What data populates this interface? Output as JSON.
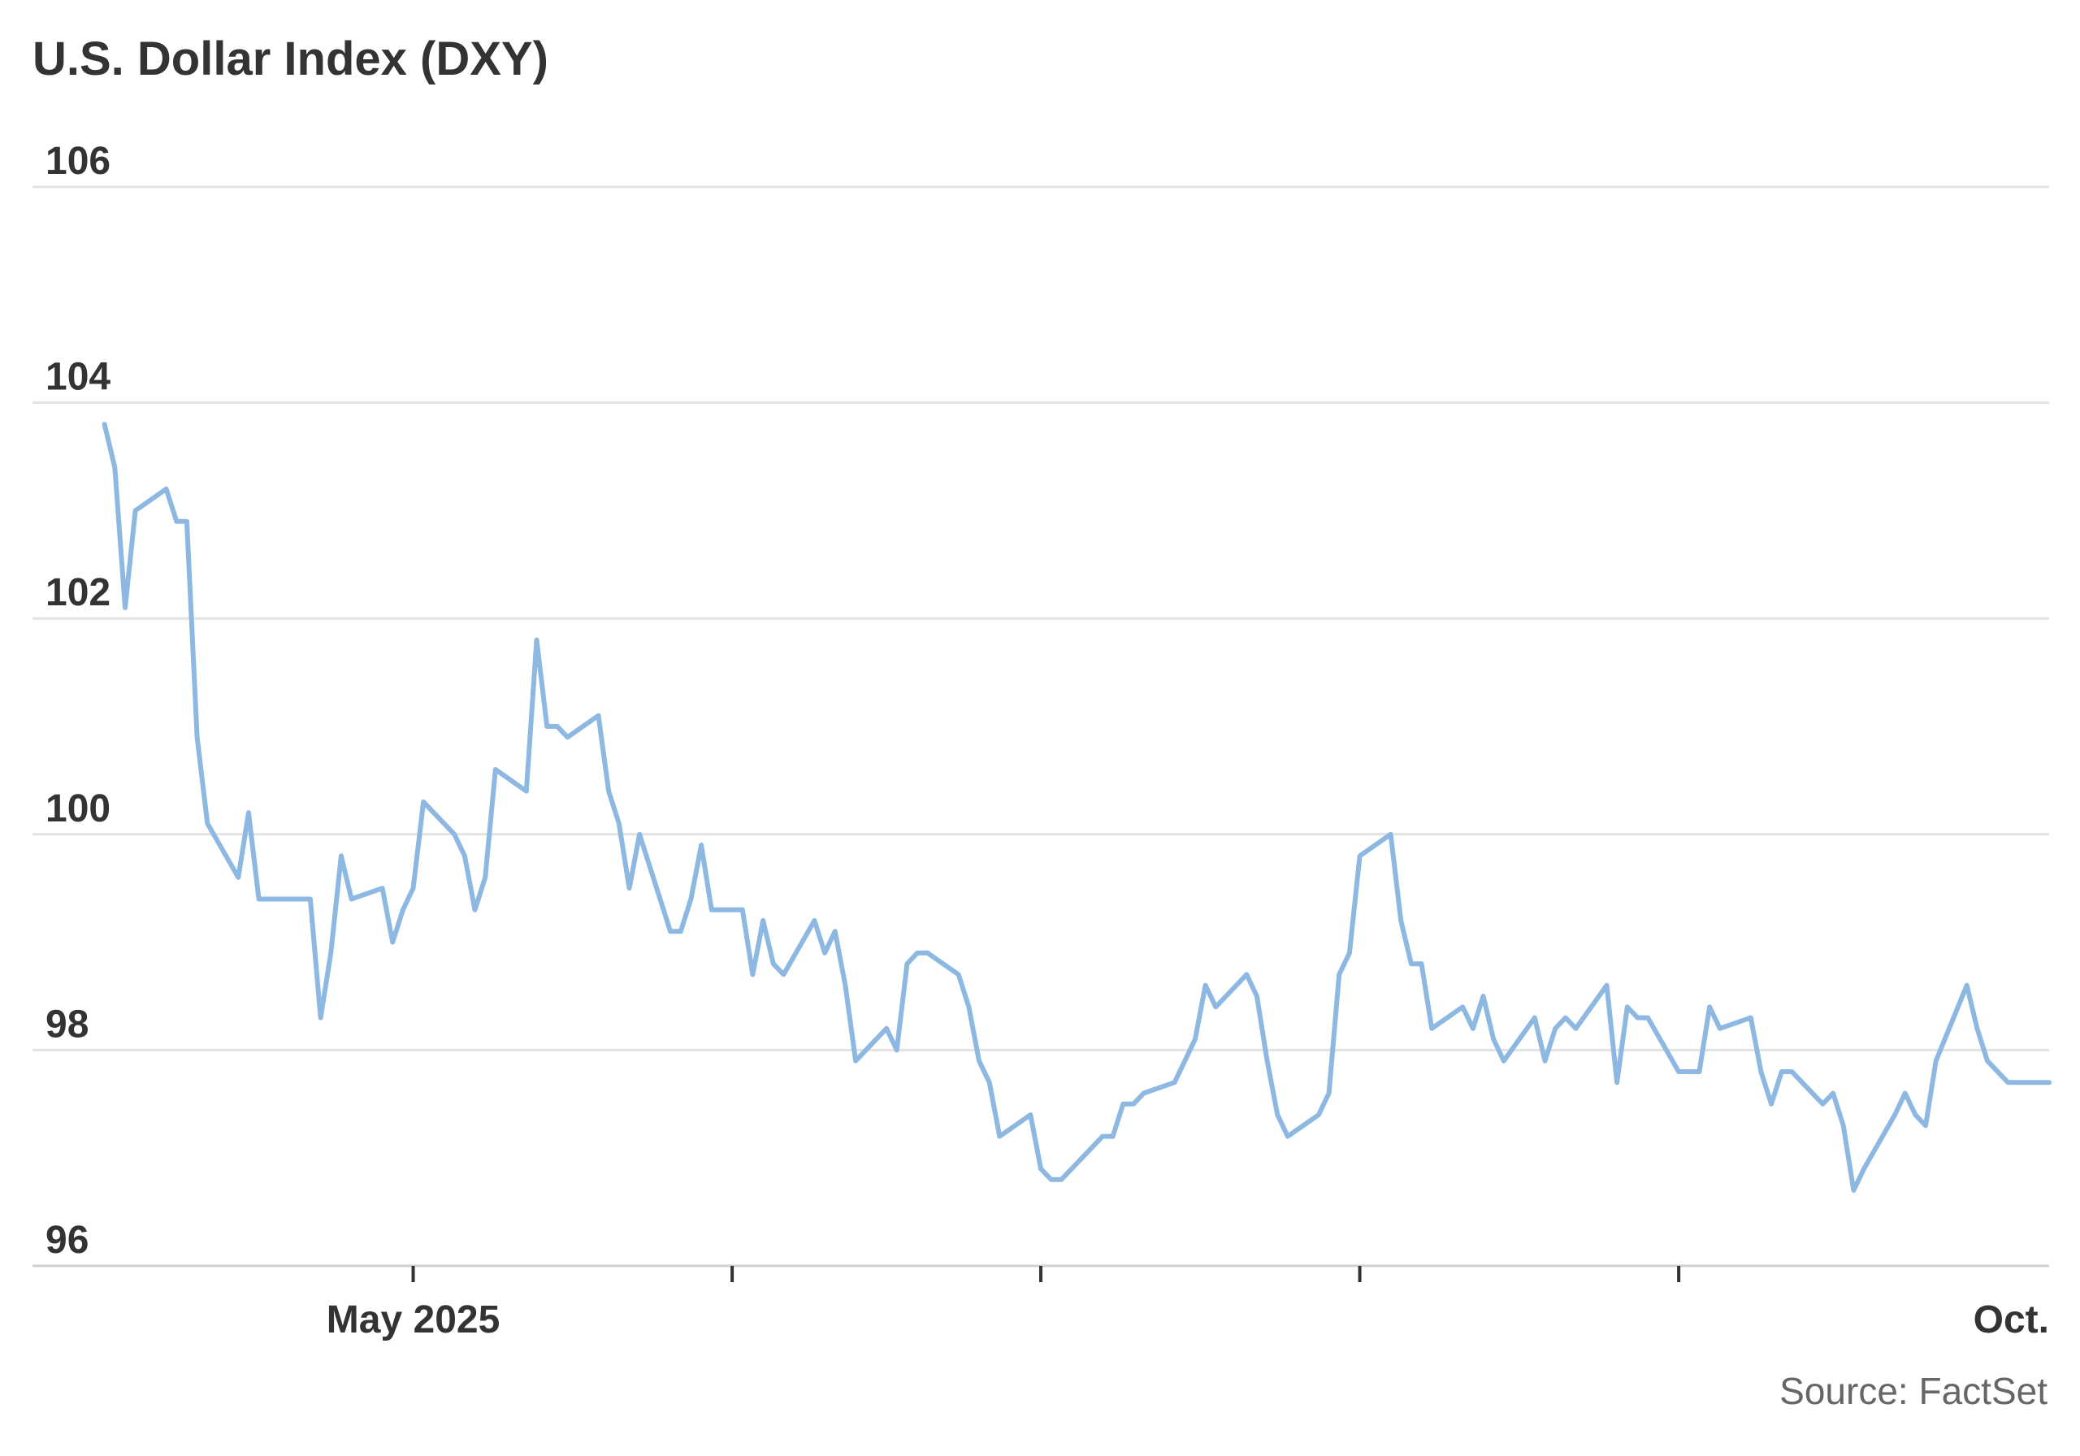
{
  "chart_data": {
    "type": "line",
    "title": "U.S. Dollar Index (DXY)",
    "source": "Source: FactSet",
    "ylim": [
      96,
      106
    ],
    "yticks": [
      {
        "value": 106,
        "label": "106"
      },
      {
        "value": 104,
        "label": "104"
      },
      {
        "value": 102,
        "label": "102"
      },
      {
        "value": 100,
        "label": "100"
      },
      {
        "value": 98,
        "label": "98"
      },
      {
        "value": 96,
        "label": "96"
      }
    ],
    "grid": true,
    "x_start": "2025-04-01",
    "xlim": [
      "2025-03-25",
      "2025-10-07"
    ],
    "xticks": [
      {
        "date": "2025-05-01",
        "label": "May 2025"
      },
      {
        "date": "2025-06-01",
        "label": ""
      },
      {
        "date": "2025-07-01",
        "label": ""
      },
      {
        "date": "2025-08-01",
        "label": ""
      },
      {
        "date": "2025-09-01",
        "label": ""
      },
      {
        "date": "2025-10-07",
        "label": "Oct."
      }
    ],
    "line_color": "#8db8e2",
    "series": [
      {
        "name": "",
        "points": [
          [
            "2025-04-01",
            103.8
          ],
          [
            "2025-04-02",
            103.4
          ],
          [
            "2025-04-03",
            102.1
          ],
          [
            "2025-04-04",
            103.0
          ],
          [
            "2025-04-07",
            103.2
          ],
          [
            "2025-04-08",
            102.9
          ],
          [
            "2025-04-09",
            102.9
          ],
          [
            "2025-04-10",
            100.9
          ],
          [
            "2025-04-11",
            100.1
          ],
          [
            "2025-04-14",
            99.6
          ],
          [
            "2025-04-15",
            100.2
          ],
          [
            "2025-04-16",
            99.4
          ],
          [
            "2025-04-17",
            99.4
          ],
          [
            "2025-04-21",
            99.4
          ],
          [
            "2025-04-22",
            98.3
          ],
          [
            "2025-04-23",
            98.9
          ],
          [
            "2025-04-24",
            99.8
          ],
          [
            "2025-04-25",
            99.4
          ],
          [
            "2025-04-28",
            99.5
          ],
          [
            "2025-04-29",
            99.0
          ],
          [
            "2025-04-30",
            99.3
          ],
          [
            "2025-05-01",
            99.5
          ],
          [
            "2025-05-02",
            100.3
          ],
          [
            "2025-05-05",
            100.0
          ],
          [
            "2025-05-06",
            99.8
          ],
          [
            "2025-05-07",
            99.3
          ],
          [
            "2025-05-08",
            99.6
          ],
          [
            "2025-05-09",
            100.6
          ],
          [
            "2025-05-12",
            100.4
          ],
          [
            "2025-05-13",
            101.8
          ],
          [
            "2025-05-14",
            101.0
          ],
          [
            "2025-05-15",
            101.0
          ],
          [
            "2025-05-16",
            100.9
          ],
          [
            "2025-05-19",
            101.1
          ],
          [
            "2025-05-20",
            100.4
          ],
          [
            "2025-05-21",
            100.1
          ],
          [
            "2025-05-22",
            99.5
          ],
          [
            "2025-05-23",
            100.0
          ],
          [
            "2025-05-26",
            99.1
          ],
          [
            "2025-05-27",
            99.1
          ],
          [
            "2025-05-28",
            99.4
          ],
          [
            "2025-05-29",
            99.9
          ],
          [
            "2025-05-30",
            99.3
          ],
          [
            "2025-06-02",
            99.3
          ],
          [
            "2025-06-03",
            98.7
          ],
          [
            "2025-06-04",
            99.2
          ],
          [
            "2025-06-05",
            98.8
          ],
          [
            "2025-06-06",
            98.7
          ],
          [
            "2025-06-09",
            99.2
          ],
          [
            "2025-06-10",
            98.9
          ],
          [
            "2025-06-11",
            99.1
          ],
          [
            "2025-06-12",
            98.6
          ],
          [
            "2025-06-13",
            97.9
          ],
          [
            "2025-06-16",
            98.2
          ],
          [
            "2025-06-17",
            98.0
          ],
          [
            "2025-06-18",
            98.8
          ],
          [
            "2025-06-19",
            98.9
          ],
          [
            "2025-06-20",
            98.9
          ],
          [
            "2025-06-23",
            98.7
          ],
          [
            "2025-06-24",
            98.4
          ],
          [
            "2025-06-25",
            97.9
          ],
          [
            "2025-06-26",
            97.7
          ],
          [
            "2025-06-27",
            97.2
          ],
          [
            "2025-06-30",
            97.4
          ],
          [
            "2025-07-01",
            96.9
          ],
          [
            "2025-07-02",
            96.8
          ],
          [
            "2025-07-03",
            96.8
          ],
          [
            "2025-07-07",
            97.2
          ],
          [
            "2025-07-08",
            97.2
          ],
          [
            "2025-07-09",
            97.5
          ],
          [
            "2025-07-10",
            97.5
          ],
          [
            "2025-07-11",
            97.6
          ],
          [
            "2025-07-14",
            97.7
          ],
          [
            "2025-07-15",
            97.9
          ],
          [
            "2025-07-16",
            98.1
          ],
          [
            "2025-07-17",
            98.6
          ],
          [
            "2025-07-18",
            98.4
          ],
          [
            "2025-07-21",
            98.7
          ],
          [
            "2025-07-22",
            98.5
          ],
          [
            "2025-07-23",
            97.9
          ],
          [
            "2025-07-24",
            97.4
          ],
          [
            "2025-07-25",
            97.2
          ],
          [
            "2025-07-28",
            97.4
          ],
          [
            "2025-07-29",
            97.6
          ],
          [
            "2025-07-30",
            98.7
          ],
          [
            "2025-07-31",
            98.9
          ],
          [
            "2025-08-01",
            99.8
          ],
          [
            "2025-08-04",
            100.0
          ],
          [
            "2025-08-05",
            99.2
          ],
          [
            "2025-08-06",
            98.8
          ],
          [
            "2025-08-07",
            98.8
          ],
          [
            "2025-08-08",
            98.2
          ],
          [
            "2025-08-11",
            98.4
          ],
          [
            "2025-08-12",
            98.2
          ],
          [
            "2025-08-13",
            98.5
          ],
          [
            "2025-08-14",
            98.1
          ],
          [
            "2025-08-15",
            97.9
          ],
          [
            "2025-08-18",
            98.3
          ],
          [
            "2025-08-19",
            97.9
          ],
          [
            "2025-08-20",
            98.2
          ],
          [
            "2025-08-21",
            98.3
          ],
          [
            "2025-08-22",
            98.2
          ],
          [
            "2025-08-25",
            98.6
          ],
          [
            "2025-08-26",
            97.7
          ],
          [
            "2025-08-27",
            98.4
          ],
          [
            "2025-08-28",
            98.3
          ],
          [
            "2025-08-29",
            98.3
          ],
          [
            "2025-09-01",
            97.8
          ],
          [
            "2025-09-02",
            97.8
          ],
          [
            "2025-09-03",
            97.8
          ],
          [
            "2025-09-04",
            98.4
          ],
          [
            "2025-09-05",
            98.2
          ],
          [
            "2025-09-08",
            98.3
          ],
          [
            "2025-09-09",
            97.8
          ],
          [
            "2025-09-10",
            97.5
          ],
          [
            "2025-09-11",
            97.8
          ],
          [
            "2025-09-12",
            97.8
          ],
          [
            "2025-09-15",
            97.5
          ],
          [
            "2025-09-16",
            97.6
          ],
          [
            "2025-09-17",
            97.3
          ],
          [
            "2025-09-18",
            96.7
          ],
          [
            "2025-09-19",
            96.9
          ],
          [
            "2025-09-22",
            97.4
          ],
          [
            "2025-09-23",
            97.6
          ],
          [
            "2025-09-24",
            97.4
          ],
          [
            "2025-09-25",
            97.3
          ],
          [
            "2025-09-26",
            97.9
          ],
          [
            "2025-09-29",
            98.6
          ],
          [
            "2025-09-30",
            98.2
          ],
          [
            "2025-10-01",
            97.9
          ],
          [
            "2025-10-02",
            97.8
          ],
          [
            "2025-10-03",
            97.7
          ],
          [
            "2025-10-07",
            97.7
          ]
        ]
      }
    ]
  }
}
